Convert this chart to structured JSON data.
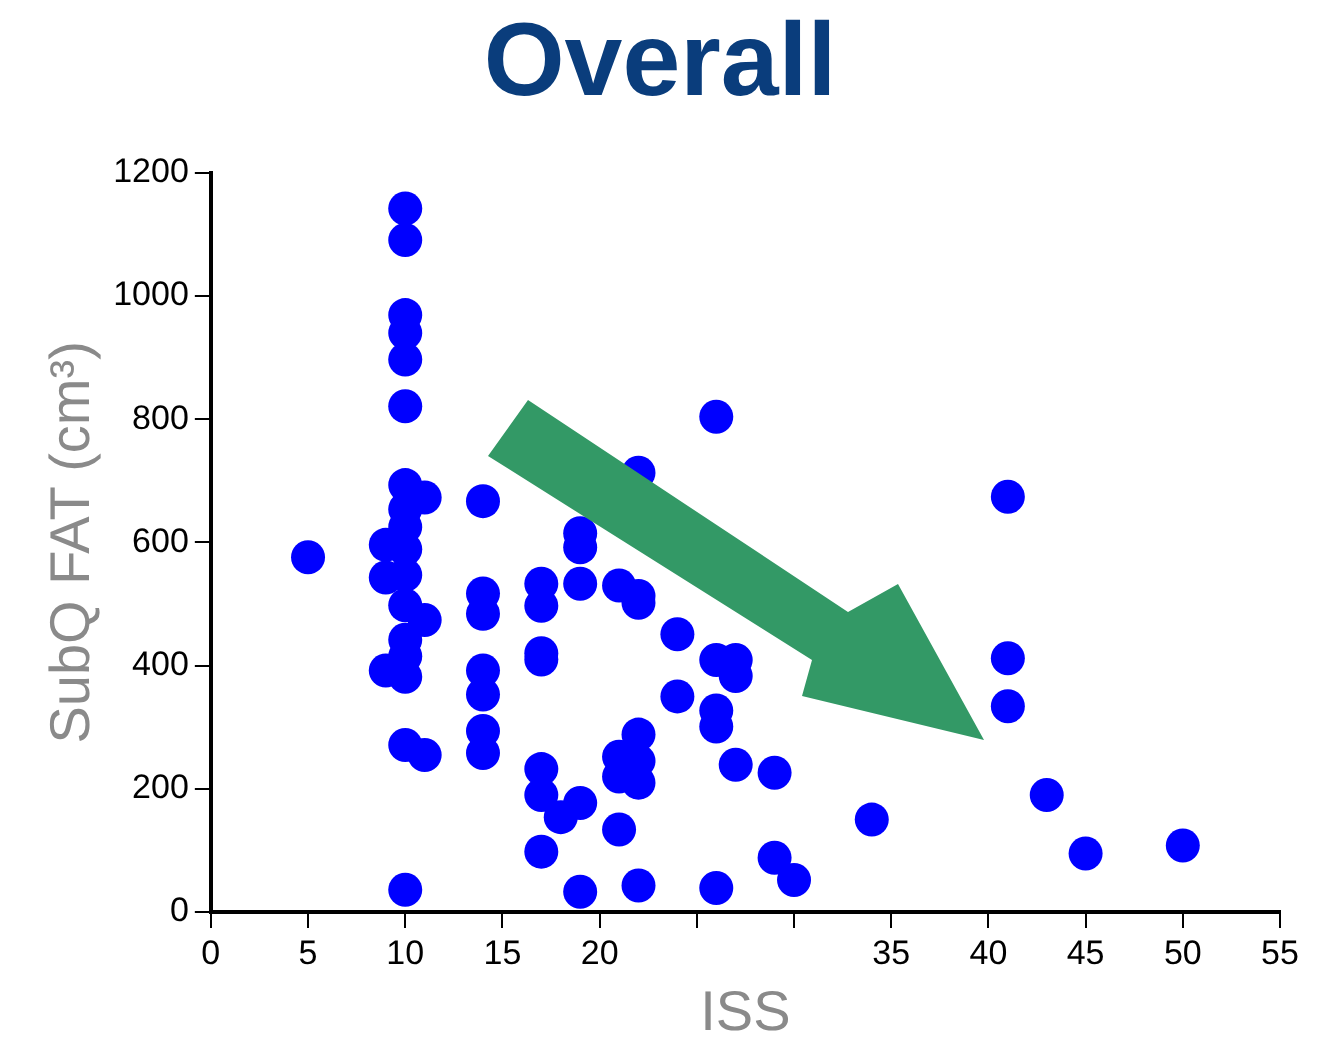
{
  "chart_data": {
    "type": "scatter",
    "title": "Overall",
    "xlabel": "ISS",
    "ylabel": "SubQ FAT (cm³)",
    "xlim": [
      0,
      55
    ],
    "xticks": [
      0,
      5,
      10,
      15,
      20,
      {
        "value": 25,
        "label": null
      },
      {
        "value": 30,
        "label": null
      },
      35,
      40,
      45,
      50,
      55
    ],
    "ylim": [
      0,
      1200
    ],
    "yticks": [
      0,
      200,
      400,
      600,
      800,
      1000,
      1200
    ],
    "grid": false,
    "legend": false,
    "marker": "circle",
    "series": [
      {
        "color": "#0000ff",
        "x": [
          5,
          9,
          9,
          9,
          10,
          10,
          10,
          10,
          10,
          10,
          10,
          10,
          10,
          10,
          10,
          10,
          10,
          10,
          10,
          10,
          10,
          11,
          11,
          11,
          14,
          14,
          14,
          14,
          14,
          14,
          14,
          17,
          17,
          17,
          17,
          17,
          17,
          17,
          18,
          19,
          19,
          19,
          19,
          19,
          21,
          21,
          21,
          21,
          22,
          22,
          22,
          22,
          22,
          22,
          22,
          24,
          24,
          26,
          26,
          26,
          26,
          26,
          27,
          27,
          27,
          29,
          29,
          30,
          34,
          41,
          41,
          41,
          43,
          45,
          50
        ],
        "values": [
          576,
          596,
          543,
          392,
          1142,
          1091,
          969,
          940,
          897,
          821,
          693,
          654,
          625,
          589,
          547,
          498,
          442,
          415,
          382,
          271,
          36,
          673,
          474,
          255,
          667,
          517,
          484,
          392,
          353,
          294,
          258,
          533,
          497,
          420,
          410,
          232,
          190,
          98,
          154,
          615,
          592,
          533,
          177,
          33,
          530,
          252,
          220,
          134,
          713,
          513,
          502,
          288,
          245,
          210,
          43,
          451,
          350,
          804,
          409,
          327,
          301,
          39,
          409,
          383,
          239,
          226,
          88,
          52,
          150,
          674,
          412,
          334,
          190,
          95,
          108
        ]
      }
    ]
  }
}
